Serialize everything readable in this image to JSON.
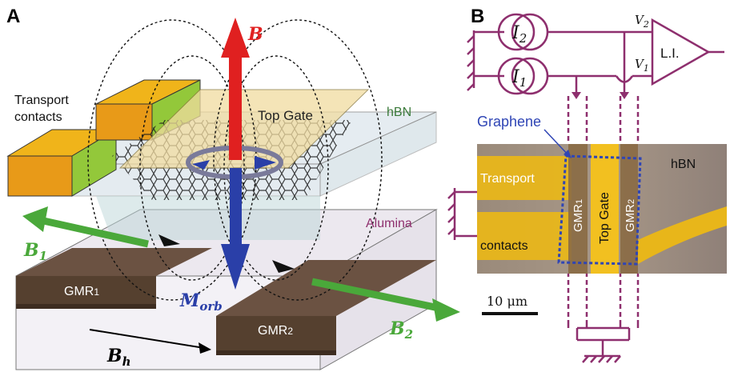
{
  "panel_a": {
    "panel_label": "A",
    "labels": {
      "b_field": "B",
      "top_gate": "Top Gate",
      "hbn": "hBN",
      "transport_contacts": "Transport contacts",
      "alumina": "Alumina",
      "b1": "B",
      "b1_sub": "1",
      "gmr1": "GMR",
      "gmr1_sub": "1",
      "m_orb": "M",
      "m_orb_sub": "orb",
      "gmr2": "GMR",
      "gmr2_sub": "2",
      "b2": "B",
      "b2_sub": "2",
      "b_h": "B",
      "b_h_sub": "h"
    }
  },
  "panel_b": {
    "panel_label": "B",
    "labels": {
      "i2": "I",
      "i2_sub": "2",
      "i1": "I",
      "i1_sub": "1",
      "v2": "V",
      "v2_sub": "2",
      "v1": "V",
      "v1_sub": "1",
      "lock_in": "L.I.",
      "graphene": "Graphene",
      "hbn": "hBN",
      "transport": "Transport",
      "contacts": "contacts",
      "gmr1": "GMR",
      "gmr1_sub": "1",
      "top_gate": "Top Gate",
      "gmr2": "GMR",
      "gmr2_sub": "2",
      "scale_bar": "10 μm"
    }
  },
  "colors": {
    "circuit": "#8e2f6e",
    "b_arrow": "#e02020",
    "m_arrow": "#2a3fa8",
    "green_arrow": "#4aa83a",
    "graphene_label": "#2f45b5",
    "alumina_label": "#8e2f6e",
    "hbn_label": "#3a7a3a",
    "gmr_pad": "#6b5242",
    "gold": "#e8b61a",
    "gate": "#f1dca0"
  }
}
